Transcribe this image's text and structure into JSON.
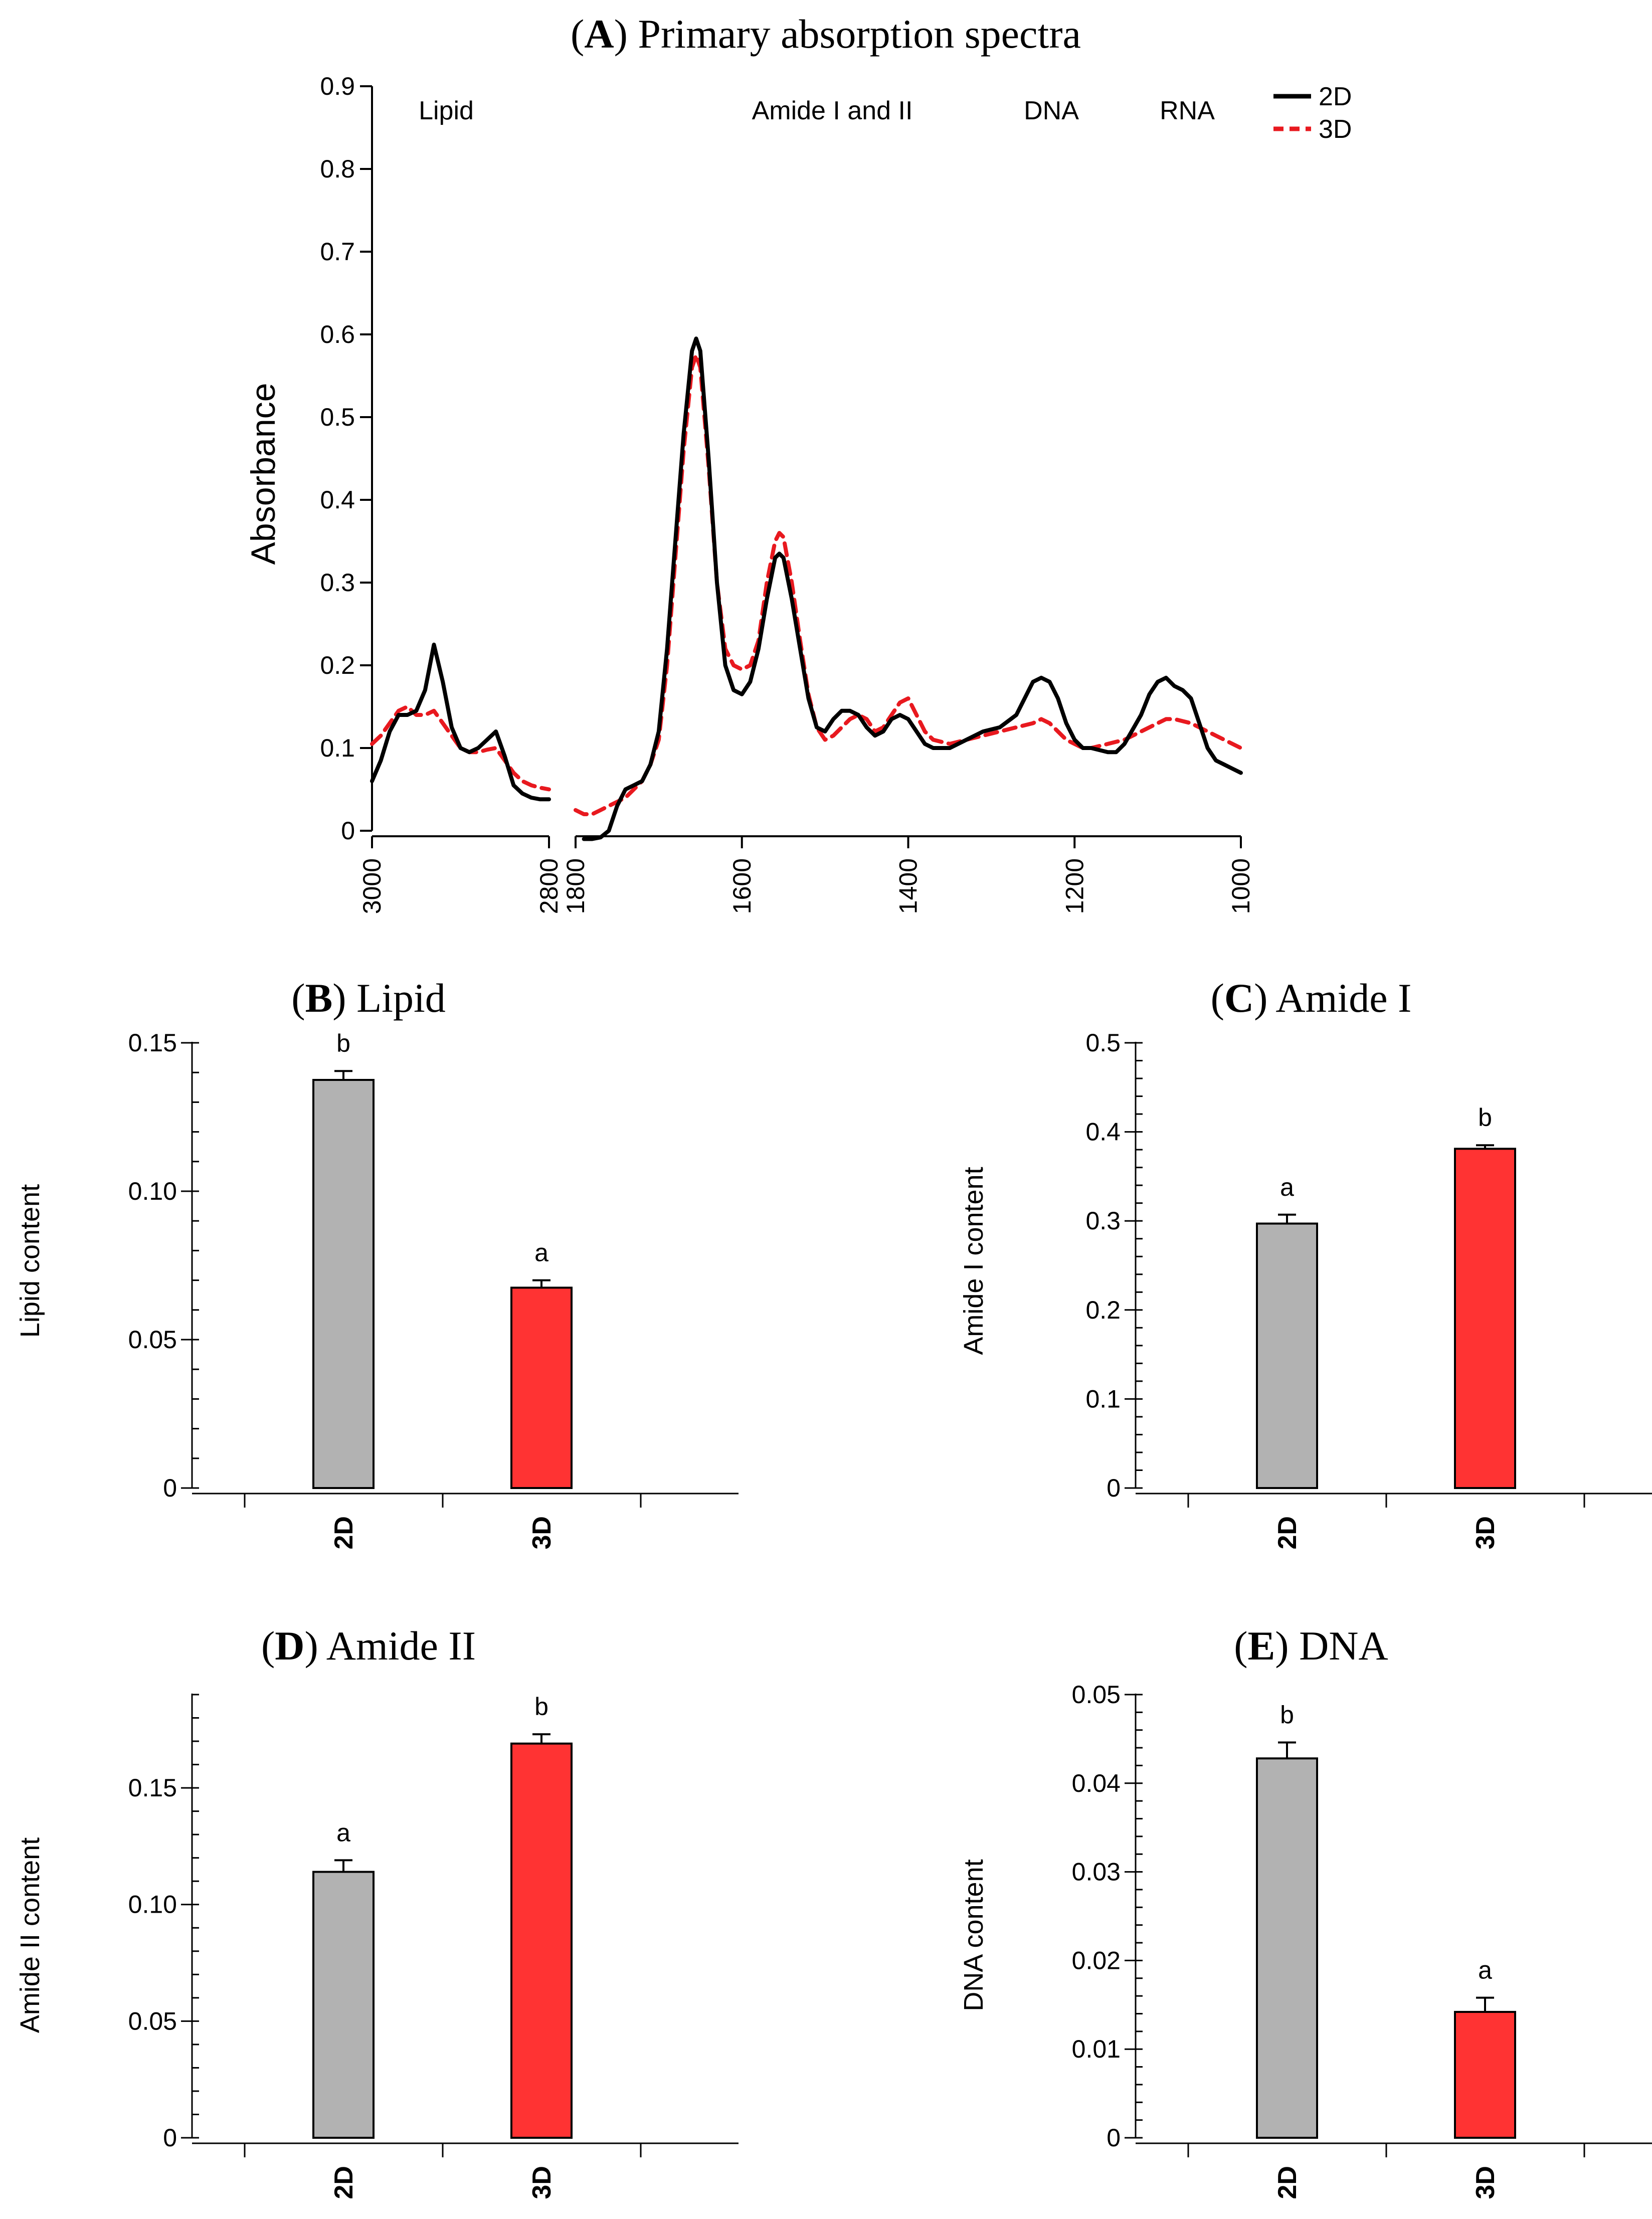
{
  "colors": {
    "series_2d": "#000000",
    "series_3d": "#e8191f",
    "bar_2d": "#b2b2b2",
    "bar_3d": "#ff3333",
    "axis": "#000000"
  },
  "panel_a": {
    "letter": "A",
    "title_rest": " Primary absorption spectra",
    "chart_data": {
      "type": "line",
      "title": "(A) Primary absorption spectra",
      "xlabel": "",
      "ylabel": "Absorbance",
      "ylim": [
        0,
        0.9
      ],
      "yticks": [
        "0",
        "0.1",
        "0.2",
        "0.3",
        "0.4",
        "0.5",
        "0.6",
        "0.7",
        "0.8",
        "0.9"
      ],
      "x_segments": [
        {
          "range": [
            3000,
            2800
          ],
          "ticks": [
            "3000",
            "2800"
          ]
        },
        {
          "range": [
            1800,
            1000
          ],
          "ticks": [
            "1800",
            "1600",
            "1400",
            "1200",
            "1000"
          ]
        }
      ],
      "region_labels": [
        "Lipid",
        "Amide I and II",
        "DNA",
        "RNA"
      ],
      "legend": [
        "2D",
        "3D"
      ],
      "series": [
        {
          "name": "2D",
          "style": "solid",
          "segments": [
            [
              [
                3000,
                0.06
              ],
              [
                2990,
                0.085
              ],
              [
                2980,
                0.12
              ],
              [
                2970,
                0.14
              ],
              [
                2960,
                0.14
              ],
              [
                2950,
                0.145
              ],
              [
                2940,
                0.17
              ],
              [
                2930,
                0.225
              ],
              [
                2920,
                0.18
              ],
              [
                2910,
                0.125
              ],
              [
                2900,
                0.1
              ],
              [
                2890,
                0.095
              ],
              [
                2880,
                0.1
              ],
              [
                2870,
                0.11
              ],
              [
                2860,
                0.12
              ],
              [
                2850,
                0.09
              ],
              [
                2840,
                0.055
              ],
              [
                2830,
                0.045
              ],
              [
                2820,
                0.04
              ],
              [
                2810,
                0.038
              ],
              [
                2800,
                0.038
              ]
            ],
            [
              [
                1790,
                -0.01
              ],
              [
                1780,
                -0.01
              ],
              [
                1770,
                -0.008
              ],
              [
                1760,
                0.0
              ],
              [
                1750,
                0.03
              ],
              [
                1740,
                0.05
              ],
              [
                1730,
                0.055
              ],
              [
                1720,
                0.06
              ],
              [
                1710,
                0.08
              ],
              [
                1700,
                0.12
              ],
              [
                1690,
                0.22
              ],
              [
                1680,
                0.35
              ],
              [
                1670,
                0.48
              ],
              [
                1660,
                0.58
              ],
              [
                1655,
                0.595
              ],
              [
                1650,
                0.58
              ],
              [
                1640,
                0.45
              ],
              [
                1630,
                0.3
              ],
              [
                1620,
                0.2
              ],
              [
                1610,
                0.17
              ],
              [
                1600,
                0.165
              ],
              [
                1590,
                0.18
              ],
              [
                1580,
                0.22
              ],
              [
                1570,
                0.28
              ],
              [
                1560,
                0.33
              ],
              [
                1555,
                0.335
              ],
              [
                1550,
                0.33
              ],
              [
                1540,
                0.28
              ],
              [
                1530,
                0.22
              ],
              [
                1520,
                0.16
              ],
              [
                1510,
                0.125
              ],
              [
                1500,
                0.12
              ],
              [
                1490,
                0.135
              ],
              [
                1480,
                0.145
              ],
              [
                1470,
                0.145
              ],
              [
                1460,
                0.14
              ],
              [
                1450,
                0.125
              ],
              [
                1440,
                0.115
              ],
              [
                1430,
                0.12
              ],
              [
                1420,
                0.135
              ],
              [
                1410,
                0.14
              ],
              [
                1400,
                0.135
              ],
              [
                1390,
                0.12
              ],
              [
                1380,
                0.105
              ],
              [
                1370,
                0.1
              ],
              [
                1350,
                0.1
              ],
              [
                1330,
                0.11
              ],
              [
                1310,
                0.12
              ],
              [
                1290,
                0.125
              ],
              [
                1270,
                0.14
              ],
              [
                1260,
                0.16
              ],
              [
                1250,
                0.18
              ],
              [
                1240,
                0.185
              ],
              [
                1230,
                0.18
              ],
              [
                1220,
                0.16
              ],
              [
                1210,
                0.13
              ],
              [
                1200,
                0.11
              ],
              [
                1190,
                0.1
              ],
              [
                1180,
                0.1
              ],
              [
                1160,
                0.095
              ],
              [
                1150,
                0.095
              ],
              [
                1140,
                0.105
              ],
              [
                1120,
                0.14
              ],
              [
                1110,
                0.165
              ],
              [
                1100,
                0.18
              ],
              [
                1090,
                0.185
              ],
              [
                1080,
                0.175
              ],
              [
                1070,
                0.17
              ],
              [
                1060,
                0.16
              ],
              [
                1050,
                0.13
              ],
              [
                1040,
                0.1
              ],
              [
                1030,
                0.085
              ],
              [
                1020,
                0.08
              ],
              [
                1010,
                0.075
              ],
              [
                1000,
                0.07
              ]
            ]
          ]
        },
        {
          "name": "3D",
          "style": "dashed",
          "segments": [
            [
              [
                3000,
                0.105
              ],
              [
                2990,
                0.115
              ],
              [
                2980,
                0.13
              ],
              [
                2970,
                0.145
              ],
              [
                2960,
                0.15
              ],
              [
                2950,
                0.14
              ],
              [
                2940,
                0.14
              ],
              [
                2930,
                0.145
              ],
              [
                2920,
                0.13
              ],
              [
                2910,
                0.115
              ],
              [
                2900,
                0.1
              ],
              [
                2890,
                0.095
              ],
              [
                2880,
                0.095
              ],
              [
                2870,
                0.098
              ],
              [
                2860,
                0.1
              ],
              [
                2850,
                0.085
              ],
              [
                2840,
                0.07
              ],
              [
                2830,
                0.06
              ],
              [
                2820,
                0.055
              ],
              [
                2810,
                0.052
              ],
              [
                2800,
                0.05
              ]
            ],
            [
              [
                1800,
                0.025
              ],
              [
                1790,
                0.02
              ],
              [
                1780,
                0.02
              ],
              [
                1770,
                0.025
              ],
              [
                1760,
                0.03
              ],
              [
                1750,
                0.035
              ],
              [
                1740,
                0.04
              ],
              [
                1730,
                0.05
              ],
              [
                1720,
                0.06
              ],
              [
                1710,
                0.08
              ],
              [
                1700,
                0.11
              ],
              [
                1690,
                0.2
              ],
              [
                1680,
                0.33
              ],
              [
                1670,
                0.46
              ],
              [
                1660,
                0.56
              ],
              [
                1655,
                0.575
              ],
              [
                1650,
                0.56
              ],
              [
                1640,
                0.44
              ],
              [
                1630,
                0.3
              ],
              [
                1620,
                0.22
              ],
              [
                1610,
                0.2
              ],
              [
                1600,
                0.195
              ],
              [
                1590,
                0.2
              ],
              [
                1580,
                0.23
              ],
              [
                1570,
                0.3
              ],
              [
                1560,
                0.35
              ],
              [
                1555,
                0.36
              ],
              [
                1550,
                0.355
              ],
              [
                1540,
                0.3
              ],
              [
                1530,
                0.23
              ],
              [
                1520,
                0.165
              ],
              [
                1510,
                0.125
              ],
              [
                1500,
                0.11
              ],
              [
                1490,
                0.115
              ],
              [
                1480,
                0.125
              ],
              [
                1470,
                0.135
              ],
              [
                1460,
                0.14
              ],
              [
                1450,
                0.135
              ],
              [
                1440,
                0.12
              ],
              [
                1430,
                0.125
              ],
              [
                1420,
                0.14
              ],
              [
                1410,
                0.155
              ],
              [
                1400,
                0.16
              ],
              [
                1390,
                0.14
              ],
              [
                1380,
                0.12
              ],
              [
                1370,
                0.11
              ],
              [
                1350,
                0.105
              ],
              [
                1330,
                0.11
              ],
              [
                1310,
                0.115
              ],
              [
                1290,
                0.12
              ],
              [
                1270,
                0.125
              ],
              [
                1250,
                0.13
              ],
              [
                1240,
                0.135
              ],
              [
                1230,
                0.13
              ],
              [
                1220,
                0.12
              ],
              [
                1210,
                0.11
              ],
              [
                1200,
                0.105
              ],
              [
                1190,
                0.1
              ],
              [
                1180,
                0.1
              ],
              [
                1160,
                0.105
              ],
              [
                1140,
                0.11
              ],
              [
                1120,
                0.12
              ],
              [
                1100,
                0.13
              ],
              [
                1090,
                0.135
              ],
              [
                1080,
                0.135
              ],
              [
                1060,
                0.13
              ],
              [
                1050,
                0.125
              ],
              [
                1040,
                0.12
              ],
              [
                1030,
                0.115
              ],
              [
                1020,
                0.11
              ],
              [
                1010,
                0.105
              ],
              [
                1000,
                0.1
              ]
            ]
          ]
        }
      ]
    }
  },
  "bar_panels": [
    {
      "key": "B",
      "letter": "B",
      "title_rest": " Lipid",
      "chart_data": {
        "type": "bar",
        "title": "(B) Lipid",
        "ylabel": "Lipid content",
        "categories": [
          "2D",
          "3D"
        ],
        "values": [
          0.1375,
          0.0675
        ],
        "errors": [
          0.003,
          0.0025
        ],
        "letters": [
          "b",
          "a"
        ],
        "ylim": [
          0,
          0.15
        ],
        "yticks": [
          "0",
          "0.05",
          "0.10",
          "0.15"
        ],
        "minor_step": 0.01
      }
    },
    {
      "key": "C",
      "letter": "C",
      "title_rest": " Amide I",
      "chart_data": {
        "type": "bar",
        "title": "(C) Amide I",
        "ylabel": "Amide I content",
        "categories": [
          "2D",
          "3D"
        ],
        "values": [
          0.297,
          0.381
        ],
        "errors": [
          0.01,
          0.004
        ],
        "letters": [
          "a",
          "b"
        ],
        "ylim": [
          0,
          0.5
        ],
        "yticks": [
          "0",
          "0.1",
          "0.2",
          "0.3",
          "0.4",
          "0.5"
        ],
        "minor_step": 0.02
      }
    },
    {
      "key": "D",
      "letter": "D",
      "title_rest": " Amide II",
      "chart_data": {
        "type": "bar",
        "title": "(D) Amide II",
        "ylabel": "Amide II content",
        "categories": [
          "2D",
          "3D"
        ],
        "values": [
          0.114,
          0.169
        ],
        "errors": [
          0.005,
          0.004
        ],
        "letters": [
          "a",
          "b"
        ],
        "ylim": [
          0,
          0.19
        ],
        "yticks": [
          "0",
          "0.05",
          "0.10",
          "0.15"
        ],
        "minor_step": 0.01
      }
    },
    {
      "key": "E",
      "letter": "E",
      "title_rest": " DNA",
      "chart_data": {
        "type": "bar",
        "title": "(E) DNA",
        "ylabel": "DNA content",
        "categories": [
          "2D",
          "3D"
        ],
        "values": [
          0.0428,
          0.0142
        ],
        "errors": [
          0.0018,
          0.0016
        ],
        "letters": [
          "b",
          "a"
        ],
        "ylim": [
          0,
          0.05
        ],
        "yticks": [
          "0",
          "0.01",
          "0.02",
          "0.03",
          "0.04",
          "0.05"
        ],
        "minor_step": 0.002
      }
    }
  ]
}
